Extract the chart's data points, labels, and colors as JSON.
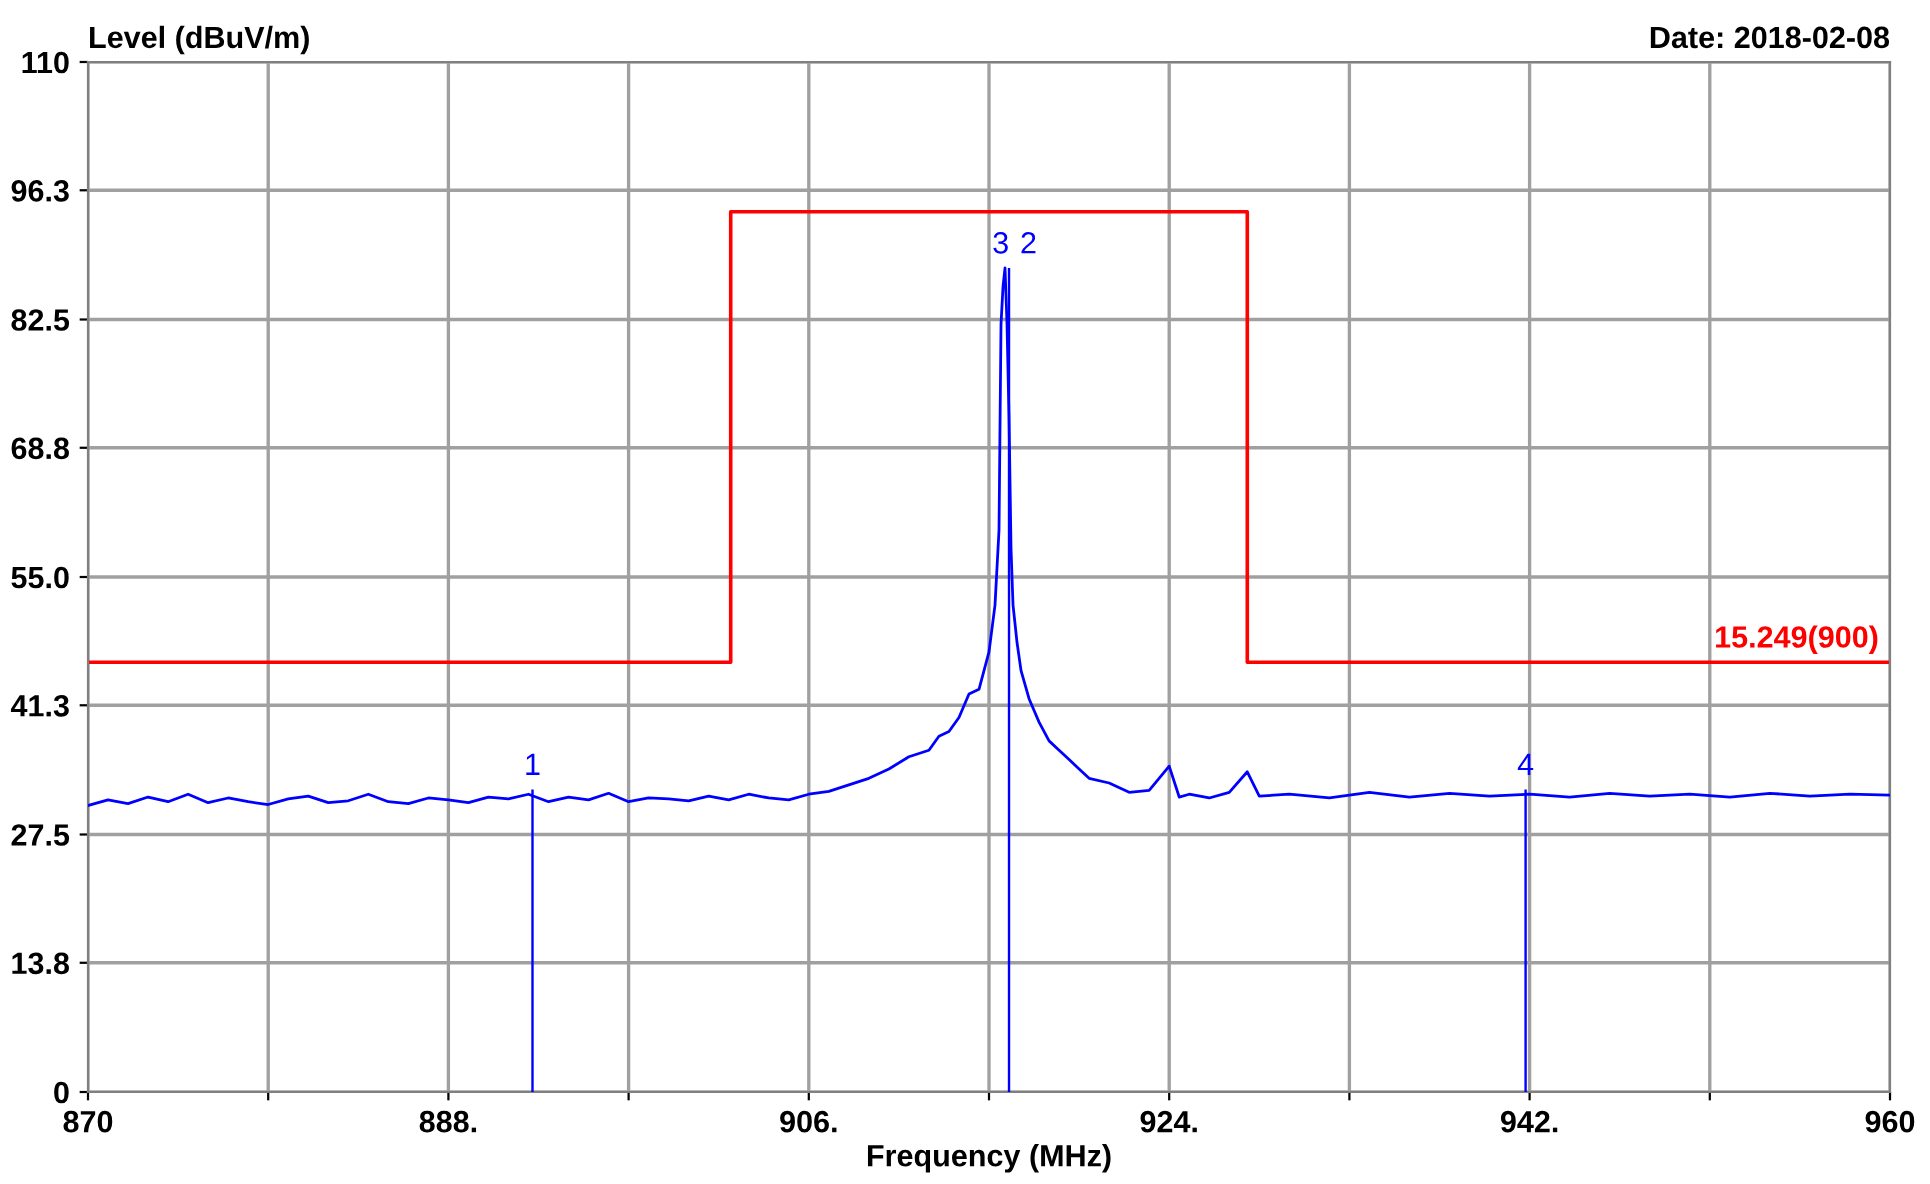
{
  "chart_data": {
    "type": "line",
    "ylabel": "Level (dBuV/m)",
    "subtitle": "Date: 2018-02-08",
    "xlabel": "Frequency (MHz)",
    "xlim": [
      870,
      960
    ],
    "ylim": [
      0,
      110
    ],
    "xticks": [
      870,
      {
        "value": 879,
        "label": null
      },
      {
        "value": 888,
        "label": "888."
      },
      {
        "value": 897,
        "label": null
      },
      {
        "value": 906,
        "label": "906."
      },
      {
        "value": 915,
        "label": null
      },
      {
        "value": 924,
        "label": "924."
      },
      {
        "value": 933,
        "label": null
      },
      {
        "value": 942,
        "label": "942."
      },
      {
        "value": 951,
        "label": null
      },
      960
    ],
    "yticks": [
      0,
      13.8,
      27.5,
      41.3,
      {
        "value": 55,
        "label": "55.0"
      },
      68.8,
      82.5,
      96.3,
      110
    ],
    "grid": true,
    "legend": false,
    "series": [
      {
        "color": "#0000ff",
        "x": [
          870,
          871,
          872,
          873,
          874,
          875,
          876,
          877,
          878,
          879,
          880,
          881,
          882,
          883,
          884,
          885,
          886,
          887,
          888,
          889,
          890,
          891,
          892,
          893,
          894,
          895,
          896,
          897,
          898,
          899,
          900,
          901,
          902,
          903,
          904,
          905,
          906,
          907,
          908,
          909,
          910,
          911,
          912,
          912.5,
          913,
          913.5,
          914,
          914.5,
          915,
          915.3,
          915.5,
          915.6,
          915.7,
          915.8,
          915.9,
          916.0,
          916.1,
          916.2,
          916.4,
          916.6,
          917,
          917.5,
          918,
          918.5,
          919,
          919.5,
          920,
          921,
          922,
          923,
          924,
          924.5,
          925,
          926,
          927,
          927.9,
          928.5,
          930,
          932,
          934,
          936,
          938,
          940,
          942,
          944,
          946,
          948,
          950,
          952,
          954,
          956,
          958,
          960
        ],
        "values": [
          30.6,
          31.2,
          30.8,
          31.5,
          31.0,
          31.8,
          30.9,
          31.4,
          31.0,
          30.7,
          31.3,
          31.6,
          30.9,
          31.1,
          31.8,
          31.0,
          30.8,
          31.4,
          31.2,
          30.9,
          31.5,
          31.3,
          31.8,
          31.0,
          31.5,
          31.2,
          31.9,
          31.0,
          31.4,
          31.3,
          31.1,
          31.6,
          31.2,
          31.8,
          31.4,
          31.2,
          31.8,
          32.1,
          32.8,
          33.5,
          34.5,
          35.8,
          36.5,
          38.0,
          38.5,
          40.0,
          42.5,
          43.0,
          47.0,
          52.0,
          60.0,
          82.0,
          86.0,
          88.0,
          82.0,
          72.0,
          58.0,
          52.0,
          48.0,
          45.0,
          42.0,
          39.5,
          37.5,
          36.5,
          35.5,
          34.5,
          33.5,
          33.0,
          32.0,
          32.2,
          34.8,
          31.5,
          31.8,
          31.4,
          32.0,
          34.2,
          31.6,
          31.8,
          31.4,
          32.0,
          31.5,
          31.9,
          31.6,
          31.8,
          31.5,
          31.9,
          31.6,
          31.8,
          31.5,
          31.9,
          31.6,
          31.8,
          31.7
        ]
      },
      {
        "type": "step",
        "color": "#ff0000",
        "x": [
          870,
          902.1,
          927.9,
          960
        ],
        "values": [
          45.9,
          94.0,
          45.9,
          45.9
        ]
      },
      {
        "type": "bar",
        "color": "#0000ff",
        "x": [
          892.2,
          916.0,
          941.8
        ],
        "values": [
          32.3,
          88.0,
          32.3
        ]
      }
    ],
    "annotations": [
      {
        "text": "15.249(900)",
        "x": 960,
        "y": 45.9
      },
      {
        "text": "1",
        "x": 892.2,
        "y": 32.3
      },
      {
        "text": "3",
        "x": 916.0,
        "y": 88.0
      },
      {
        "text": "2",
        "x": 916.0,
        "y": 88.0
      },
      {
        "text": "4",
        "x": 941.8,
        "y": 32.3
      }
    ]
  }
}
